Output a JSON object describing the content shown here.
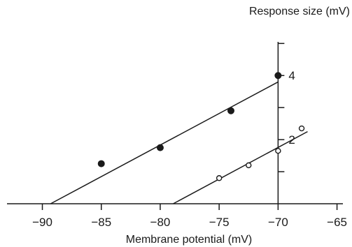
{
  "chart_data": {
    "type": "scatter",
    "xlabel": "Membrane potential (mV)",
    "ylabel": "Response size (mV)",
    "xlim": [
      -93,
      -64.5
    ],
    "ylim": [
      0,
      5.05
    ],
    "x_ticks": [
      {
        "value": -90,
        "label": "−90"
      },
      {
        "value": -85,
        "label": "−85"
      },
      {
        "value": -80,
        "label": "−80"
      },
      {
        "value": -75,
        "label": "−75"
      },
      {
        "value": -70,
        "label": "−70"
      },
      {
        "value": -65,
        "label": "−65"
      }
    ],
    "y_ticks": [
      {
        "value": 1,
        "label": ""
      },
      {
        "value": 2,
        "label": "2"
      },
      {
        "value": 3,
        "label": ""
      },
      {
        "value": 4,
        "label": "4"
      },
      {
        "value": 5,
        "label": ""
      }
    ],
    "y_axis_at_x": -70,
    "series": [
      {
        "marker": "filled-circle",
        "points": [
          [
            -85,
            1.25
          ],
          [
            -80,
            1.75
          ],
          [
            -74,
            2.9
          ],
          [
            -70,
            4.0
          ]
        ],
        "fit": [
          [
            -89.3,
            0
          ],
          [
            -70,
            3.8
          ]
        ]
      },
      {
        "marker": "open-circle",
        "points": [
          [
            -75,
            0.8
          ],
          [
            -72.5,
            1.2
          ],
          [
            -70,
            1.65
          ],
          [
            -68,
            2.35
          ]
        ],
        "fit": [
          [
            -78.9,
            0
          ],
          [
            -67.5,
            2.25
          ]
        ]
      }
    ],
    "grid": false,
    "legend": "none"
  }
}
